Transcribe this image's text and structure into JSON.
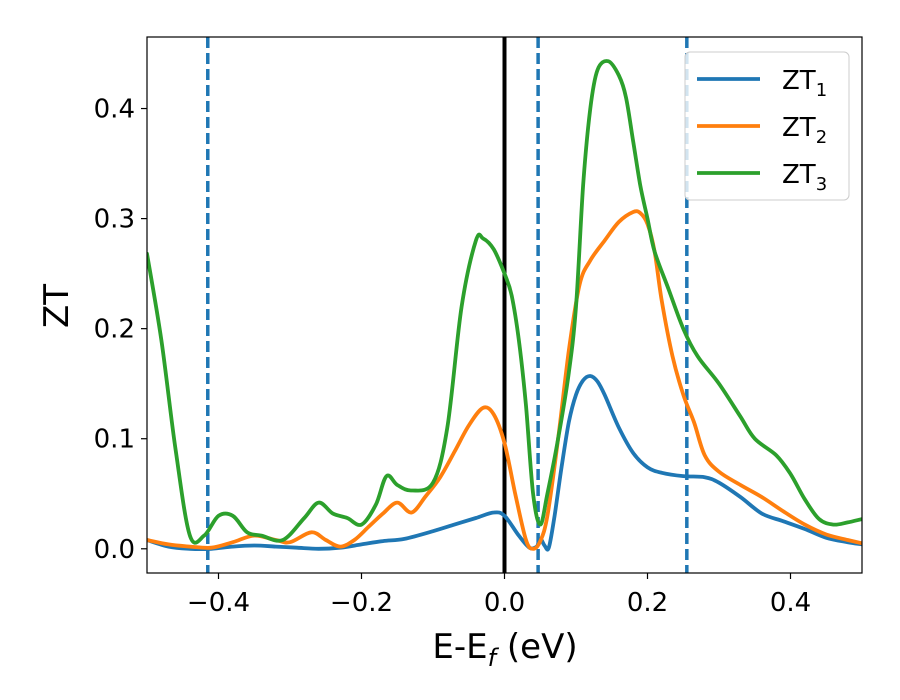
{
  "chart_data": {
    "type": "line",
    "xlabel": {
      "main": "E-E",
      "sub": "f",
      "tail": " (eV)"
    },
    "ylabel": "ZT",
    "xlim": [
      -0.5,
      0.5
    ],
    "ylim": [
      -0.022,
      0.465
    ],
    "xticks": [
      {
        "value": -0.4,
        "label": "−0.4"
      },
      {
        "value": -0.2,
        "label": "−0.2"
      },
      {
        "value": 0.0,
        "label": "0.0"
      },
      {
        "value": 0.2,
        "label": "0.2"
      },
      {
        "value": 0.4,
        "label": "0.4"
      }
    ],
    "yticks": [
      {
        "value": 0.0,
        "label": "0.0"
      },
      {
        "value": 0.1,
        "label": "0.1"
      },
      {
        "value": 0.2,
        "label": "0.2"
      },
      {
        "value": 0.3,
        "label": "0.3"
      },
      {
        "value": 0.4,
        "label": "0.4"
      }
    ],
    "grid": false,
    "legend_position": "top-right",
    "vertical_lines": [
      {
        "x": -0.415,
        "style": "dashed",
        "color": "#1f77b4"
      },
      {
        "x": 0.0,
        "style": "solid",
        "color": "#000000"
      },
      {
        "x": 0.047,
        "style": "dashed",
        "color": "#1f77b4"
      },
      {
        "x": 0.255,
        "style": "dashed",
        "color": "#1f77b4"
      }
    ],
    "series": [
      {
        "name": {
          "main": "ZT",
          "sub": "1"
        },
        "color": "#1f77b4",
        "points": [
          [
            -0.5,
            0.008
          ],
          [
            -0.47,
            0.002
          ],
          [
            -0.44,
            0.0
          ],
          [
            -0.41,
            0.0
          ],
          [
            -0.38,
            0.002
          ],
          [
            -0.35,
            0.003
          ],
          [
            -0.32,
            0.002
          ],
          [
            -0.29,
            0.001
          ],
          [
            -0.26,
            0.0
          ],
          [
            -0.23,
            0.001
          ],
          [
            -0.2,
            0.004
          ],
          [
            -0.17,
            0.007
          ],
          [
            -0.14,
            0.009
          ],
          [
            -0.1,
            0.016
          ],
          [
            -0.07,
            0.022
          ],
          [
            -0.04,
            0.028
          ],
          [
            -0.015,
            0.033
          ],
          [
            0.0,
            0.03
          ],
          [
            0.02,
            0.012
          ],
          [
            0.035,
            0.001
          ],
          [
            0.045,
            0.002
          ],
          [
            0.05,
            0.009
          ],
          [
            0.056,
            0.003
          ],
          [
            0.062,
            0.001
          ],
          [
            0.07,
            0.03
          ],
          [
            0.08,
            0.075
          ],
          [
            0.09,
            0.115
          ],
          [
            0.1,
            0.14
          ],
          [
            0.11,
            0.153
          ],
          [
            0.12,
            0.157
          ],
          [
            0.13,
            0.152
          ],
          [
            0.14,
            0.14
          ],
          [
            0.16,
            0.11
          ],
          [
            0.18,
            0.087
          ],
          [
            0.2,
            0.074
          ],
          [
            0.22,
            0.069
          ],
          [
            0.25,
            0.066
          ],
          [
            0.28,
            0.065
          ],
          [
            0.3,
            0.06
          ],
          [
            0.33,
            0.047
          ],
          [
            0.36,
            0.032
          ],
          [
            0.39,
            0.025
          ],
          [
            0.42,
            0.018
          ],
          [
            0.45,
            0.01
          ],
          [
            0.48,
            0.006
          ],
          [
            0.5,
            0.004
          ]
        ]
      },
      {
        "name": {
          "main": "ZT",
          "sub": "2"
        },
        "color": "#ff7f0e",
        "points": [
          [
            -0.5,
            0.008
          ],
          [
            -0.47,
            0.004
          ],
          [
            -0.44,
            0.002
          ],
          [
            -0.41,
            0.001
          ],
          [
            -0.38,
            0.006
          ],
          [
            -0.35,
            0.012
          ],
          [
            -0.32,
            0.008
          ],
          [
            -0.3,
            0.006
          ],
          [
            -0.27,
            0.015
          ],
          [
            -0.25,
            0.008
          ],
          [
            -0.23,
            0.002
          ],
          [
            -0.21,
            0.008
          ],
          [
            -0.19,
            0.02
          ],
          [
            -0.17,
            0.032
          ],
          [
            -0.15,
            0.042
          ],
          [
            -0.13,
            0.033
          ],
          [
            -0.11,
            0.048
          ],
          [
            -0.09,
            0.065
          ],
          [
            -0.07,
            0.088
          ],
          [
            -0.05,
            0.112
          ],
          [
            -0.03,
            0.128
          ],
          [
            -0.015,
            0.122
          ],
          [
            0.0,
            0.096
          ],
          [
            0.015,
            0.05
          ],
          [
            0.03,
            0.008
          ],
          [
            0.04,
            0.0
          ],
          [
            0.05,
            0.007
          ],
          [
            0.06,
            0.03
          ],
          [
            0.075,
            0.1
          ],
          [
            0.09,
            0.18
          ],
          [
            0.105,
            0.24
          ],
          [
            0.12,
            0.262
          ],
          [
            0.14,
            0.28
          ],
          [
            0.16,
            0.297
          ],
          [
            0.18,
            0.306
          ],
          [
            0.19,
            0.305
          ],
          [
            0.2,
            0.295
          ],
          [
            0.21,
            0.27
          ],
          [
            0.22,
            0.225
          ],
          [
            0.235,
            0.175
          ],
          [
            0.25,
            0.14
          ],
          [
            0.265,
            0.115
          ],
          [
            0.28,
            0.085
          ],
          [
            0.3,
            0.07
          ],
          [
            0.33,
            0.058
          ],
          [
            0.36,
            0.047
          ],
          [
            0.39,
            0.034
          ],
          [
            0.42,
            0.022
          ],
          [
            0.45,
            0.013
          ],
          [
            0.48,
            0.008
          ],
          [
            0.5,
            0.005
          ]
        ]
      },
      {
        "name": {
          "main": "ZT",
          "sub": "3"
        },
        "color": "#2ca02c",
        "points": [
          [
            -0.5,
            0.268
          ],
          [
            -0.48,
            0.19
          ],
          [
            -0.46,
            0.09
          ],
          [
            -0.44,
            0.012
          ],
          [
            -0.42,
            0.012
          ],
          [
            -0.4,
            0.03
          ],
          [
            -0.38,
            0.03
          ],
          [
            -0.36,
            0.015
          ],
          [
            -0.34,
            0.012
          ],
          [
            -0.31,
            0.008
          ],
          [
            -0.28,
            0.028
          ],
          [
            -0.26,
            0.042
          ],
          [
            -0.24,
            0.032
          ],
          [
            -0.22,
            0.028
          ],
          [
            -0.2,
            0.022
          ],
          [
            -0.18,
            0.04
          ],
          [
            -0.165,
            0.066
          ],
          [
            -0.15,
            0.058
          ],
          [
            -0.13,
            0.053
          ],
          [
            -0.1,
            0.06
          ],
          [
            -0.08,
            0.11
          ],
          [
            -0.06,
            0.22
          ],
          [
            -0.04,
            0.28
          ],
          [
            -0.03,
            0.282
          ],
          [
            -0.015,
            0.272
          ],
          [
            0.0,
            0.25
          ],
          [
            0.01,
            0.23
          ],
          [
            0.02,
            0.19
          ],
          [
            0.03,
            0.13
          ],
          [
            0.04,
            0.05
          ],
          [
            0.05,
            0.022
          ],
          [
            0.06,
            0.05
          ],
          [
            0.075,
            0.1
          ],
          [
            0.09,
            0.16
          ],
          [
            0.1,
            0.22
          ],
          [
            0.11,
            0.33
          ],
          [
            0.12,
            0.4
          ],
          [
            0.13,
            0.435
          ],
          [
            0.145,
            0.443
          ],
          [
            0.16,
            0.43
          ],
          [
            0.17,
            0.41
          ],
          [
            0.18,
            0.37
          ],
          [
            0.19,
            0.33
          ],
          [
            0.2,
            0.3
          ],
          [
            0.21,
            0.27
          ],
          [
            0.23,
            0.235
          ],
          [
            0.25,
            0.2
          ],
          [
            0.27,
            0.175
          ],
          [
            0.3,
            0.15
          ],
          [
            0.33,
            0.12
          ],
          [
            0.35,
            0.1
          ],
          [
            0.38,
            0.085
          ],
          [
            0.4,
            0.068
          ],
          [
            0.42,
            0.045
          ],
          [
            0.44,
            0.027
          ],
          [
            0.46,
            0.022
          ],
          [
            0.48,
            0.024
          ],
          [
            0.5,
            0.027
          ]
        ]
      }
    ]
  }
}
